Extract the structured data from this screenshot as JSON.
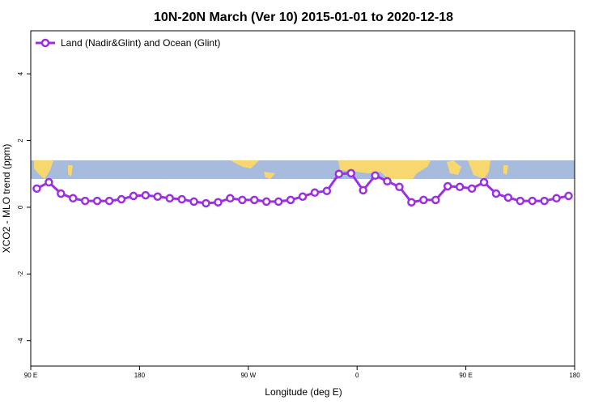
{
  "chart_data": {
    "type": "line",
    "title": "10N-20N March (Ver 10)   2015-01-01 to 2020-12-18",
    "x_label": "Longitude (deg E)",
    "y_label": "XCO2 - MLO trend (ppm)",
    "x": [
      95,
      105,
      115,
      125,
      135,
      145,
      155,
      165,
      175,
      185,
      195,
      205,
      215,
      225,
      235,
      245,
      255,
      265,
      275,
      285,
      295,
      305,
      315,
      325,
      335,
      345,
      355,
      365,
      375,
      385,
      395,
      405,
      415,
      425,
      435,
      445,
      455,
      465,
      475,
      485,
      495,
      505,
      515,
      525,
      535
    ],
    "series": [
      {
        "name": "Land (Nadir&Glint) and Ocean (Glint)",
        "color": "#9b30e0",
        "values": [
          0.56,
          0.75,
          0.41,
          0.27,
          0.19,
          0.19,
          0.19,
          0.24,
          0.34,
          0.36,
          0.32,
          0.27,
          0.24,
          0.17,
          0.12,
          0.15,
          0.27,
          0.22,
          0.22,
          0.17,
          0.17,
          0.22,
          0.32,
          0.44,
          0.49,
          1.0,
          1.02,
          0.51,
          0.95,
          0.78,
          0.61,
          0.15,
          0.22,
          0.22,
          0.63,
          0.61,
          0.56,
          0.75,
          0.41,
          0.29,
          0.19,
          0.19,
          0.19,
          0.27,
          0.34
        ]
      }
    ],
    "xlim": [
      90,
      540
    ],
    "xticks": [
      {
        "value": 90,
        "label": "90 E"
      },
      180,
      {
        "value": 270,
        "label": "90 W"
      },
      {
        "value": 360,
        "label": "0"
      },
      {
        "value": 450,
        "label": "90 E"
      },
      {
        "value": 540,
        "label": "180"
      }
    ],
    "ylim": [
      -4.76,
      5.29
    ],
    "yticks": [
      -4,
      -2,
      0,
      2,
      4
    ],
    "legend": "top-left"
  }
}
